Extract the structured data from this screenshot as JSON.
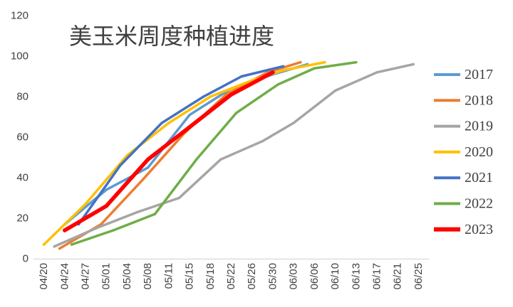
{
  "chart_data": {
    "type": "line",
    "title": "美玉米周度种植进度",
    "x_ticks": [
      "04/20",
      "04/24",
      "04/27",
      "05/01",
      "05/04",
      "05/08",
      "05/11",
      "05/15",
      "05/18",
      "05/22",
      "05/26",
      "05/30",
      "06/03",
      "06/06",
      "06/10",
      "06/13",
      "06/17",
      "06/21",
      "06/25"
    ],
    "y_ticks": [
      0,
      20,
      40,
      60,
      80,
      100,
      120
    ],
    "ylim": [
      0,
      120
    ],
    "grid": false,
    "legend": "right",
    "series": [
      {
        "name": "2017",
        "color": "#5B9BD5",
        "x": [
          "04/24",
          "05/01",
          "05/08",
          "05/15",
          "05/22",
          "05/30",
          "06/05"
        ],
        "y": [
          17,
          34,
          45,
          71,
          84,
          91,
          96
        ]
      },
      {
        "name": "2018",
        "color": "#ED7D31",
        "x": [
          "04/23",
          "04/30",
          "05/07",
          "05/14",
          "05/21",
          "05/29",
          "06/04"
        ],
        "y": [
          5,
          17,
          39,
          62,
          81,
          92,
          97
        ]
      },
      {
        "name": "2019",
        "color": "#A5A5A5",
        "x": [
          "04/22",
          "04/29",
          "05/06",
          "05/13",
          "05/20",
          "05/28",
          "06/03",
          "06/10",
          "06/17",
          "06/24"
        ],
        "y": [
          6,
          15,
          23,
          30,
          49,
          58,
          67,
          83,
          92,
          96
        ]
      },
      {
        "name": "2020",
        "color": "#FFC000",
        "x": [
          "04/20",
          "04/27",
          "05/04",
          "05/11",
          "05/18",
          "05/26",
          "06/01",
          "06/08"
        ],
        "y": [
          7,
          27,
          51,
          67,
          80,
          88,
          93,
          97
        ]
      },
      {
        "name": "2021",
        "color": "#4472C4",
        "x": [
          "04/26",
          "05/03",
          "05/10",
          "05/17",
          "05/24",
          "06/01"
        ],
        "y": [
          17,
          46,
          67,
          80,
          90,
          95
        ]
      },
      {
        "name": "2022",
        "color": "#70AD47",
        "x": [
          "04/25",
          "05/02",
          "05/09",
          "05/16",
          "05/23",
          "05/31",
          "06/06",
          "06/13"
        ],
        "y": [
          7,
          14,
          22,
          49,
          72,
          86,
          94,
          97
        ]
      },
      {
        "name": "2023",
        "color": "#FF0000",
        "x": [
          "04/24",
          "05/01",
          "05/08",
          "05/15",
          "05/22",
          "05/30"
        ],
        "y": [
          14,
          26,
          49,
          65,
          81,
          92
        ]
      }
    ]
  }
}
